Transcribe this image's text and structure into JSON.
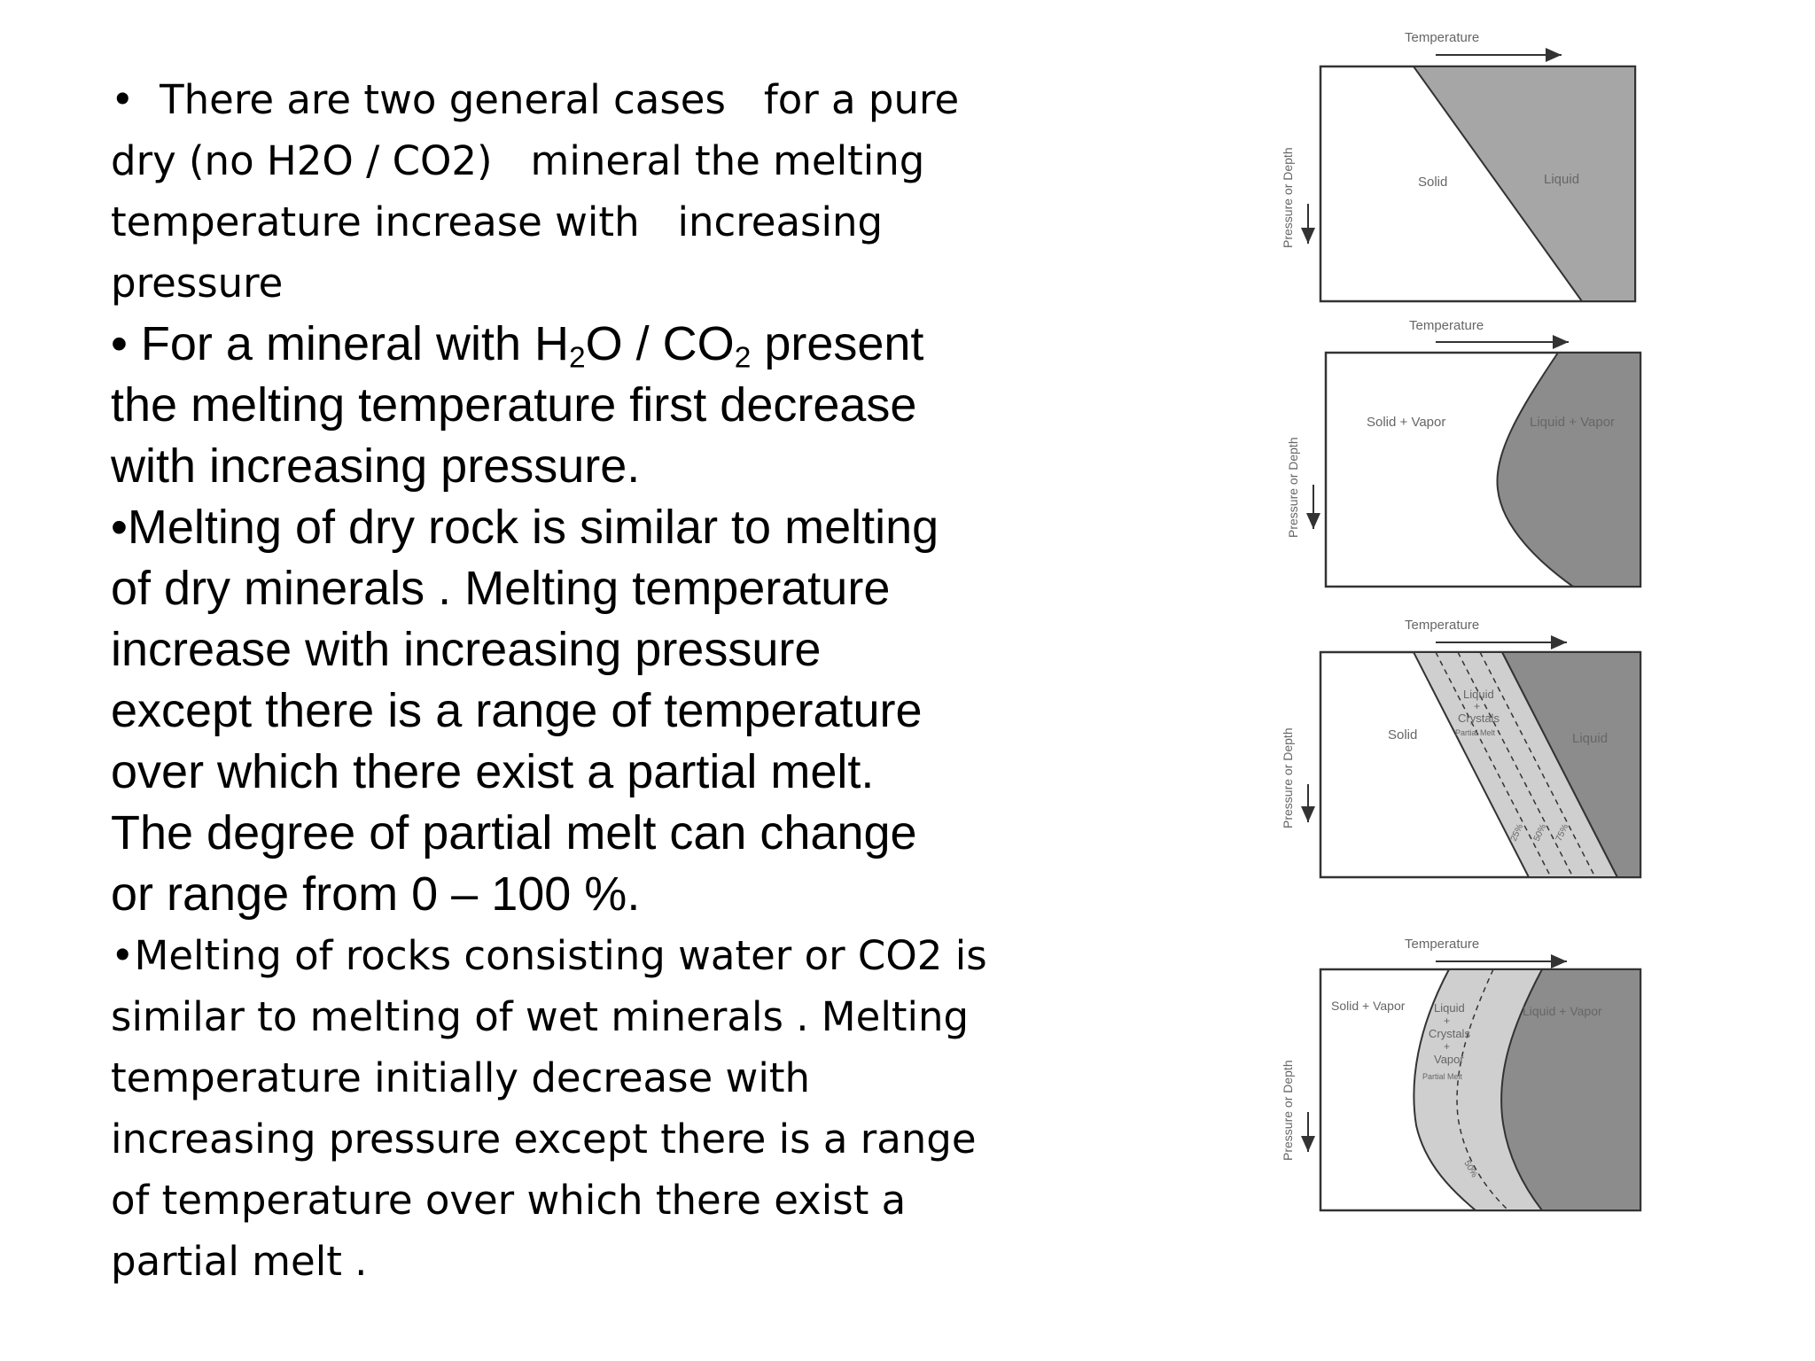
{
  "text": {
    "p1": [
      "•  There are two general cases   for a pure",
      "dry (no H2O / CO2)   mineral the melting",
      "temperature increase with   increasing",
      "pressure"
    ],
    "p2": {
      "line1": {
        "a": "• For a mineral with H",
        "sub1": "2",
        "b": "O / CO",
        "sub2": "2",
        "c": " present"
      },
      "lines": [
        "the melting temperature first decrease",
        "with increasing pressure."
      ]
    },
    "p3": [
      "•Melting of dry rock is similar to melting",
      "of dry minerals . Melting temperature",
      "increase with increasing pressure",
      "except there is a range of temperature",
      "over which there exist a partial melt.",
      "The degree of partial melt can change",
      "or range from 0 – 100 %."
    ],
    "p4": [
      "•Melting of rocks consisting water or CO2 is",
      "similar to melting of wet minerals . Melting",
      "temperature initially decrease with",
      "increasing pressure except there is a range",
      "of temperature over which there exist a",
      "partial melt ."
    ]
  },
  "diagrams": {
    "d1": {
      "x_axis": "Temperature",
      "y_axis": "Pressure or Depth",
      "left": "Solid",
      "right": "Liquid"
    },
    "d2": {
      "x_axis": "Temperature",
      "y_axis": "Pressure or Depth",
      "left": "Solid + Vapor",
      "right": "Liquid + Vapor"
    },
    "d3": {
      "x_axis": "Temperature",
      "y_axis": "Pressure or Depth",
      "left": "Solid",
      "right": "Liquid",
      "mid1": "Liquid",
      "mid2": "+",
      "mid3": "Crystals",
      "mid4": "Partial Melt",
      "pct1": "25%",
      "pct2": "50%",
      "pct3": "75%"
    },
    "d4": {
      "x_axis": "Temperature",
      "y_axis": "Pressure or Depth",
      "left": "Solid + Vapor",
      "right": "Liquid + Vapor",
      "mid1": "Liquid",
      "mid2": "+",
      "mid3": "Crystals",
      "mid4": "+",
      "mid5": "Vapor",
      "mid6": "Partial Melt",
      "pct1": "50%"
    }
  },
  "colors": {
    "liquid_fill": "#a6a6a6",
    "liquid_fill_dark": "#8c8c8c",
    "partial_fill": "#cfcfcf",
    "frame": "#333333"
  }
}
